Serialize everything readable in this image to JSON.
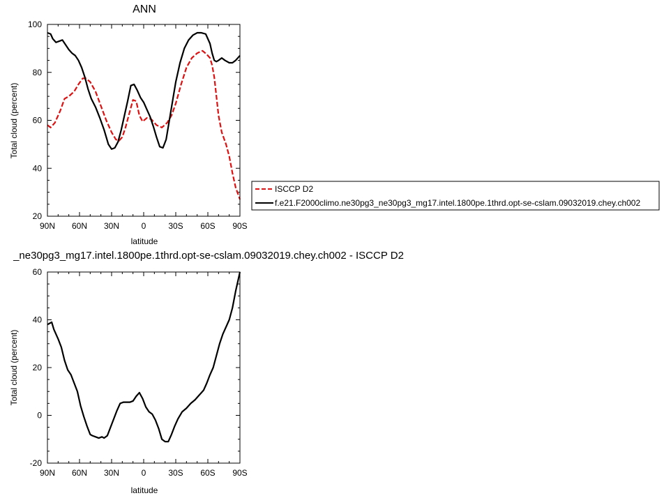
{
  "chart_data": [
    {
      "type": "line",
      "title": "ANN",
      "xlabel": "latitude",
      "ylabel": "Total cloud (percent)",
      "xlim": [
        90,
        -90
      ],
      "ylim": [
        20,
        100
      ],
      "yticks": [
        20,
        40,
        60,
        80,
        100
      ],
      "xticks": [
        {
          "value": 90,
          "label": "90N"
        },
        {
          "value": 60,
          "label": "60N"
        },
        {
          "value": 30,
          "label": "30N"
        },
        {
          "value": 0,
          "label": "0"
        },
        {
          "value": -30,
          "label": "30S"
        },
        {
          "value": -60,
          "label": "60S"
        },
        {
          "value": -90,
          "label": "90S"
        }
      ],
      "grid": false,
      "legend_position": "right",
      "series": [
        {
          "name": "ISCCP D2",
          "color": "#dd1111",
          "dash": "dashed",
          "x": [
            90,
            87,
            83,
            78,
            74,
            70,
            65,
            61,
            57,
            54,
            50,
            45,
            40,
            35,
            30,
            26,
            23,
            20,
            17,
            14,
            10,
            7,
            4,
            1,
            -3,
            -7,
            -12,
            -17,
            -22,
            -26,
            -30,
            -35,
            -40,
            -45,
            -50,
            -55,
            -59,
            -62,
            -64,
            -66,
            -68,
            -70,
            -73,
            -77,
            -80,
            -83,
            -86,
            -90
          ],
          "y": [
            58,
            57,
            59,
            64,
            69,
            70,
            72,
            75,
            77.5,
            77.5,
            76,
            72,
            66,
            60,
            55,
            52,
            51.5,
            53,
            57,
            62,
            68.5,
            68,
            62,
            59.5,
            61,
            60.5,
            58,
            57,
            59,
            62,
            67,
            75,
            82,
            86,
            88,
            89,
            87.5,
            86,
            83,
            78,
            70,
            62,
            55,
            50,
            45,
            38,
            32,
            27
          ]
        },
        {
          "name": "f.e21.F2000climo.ne30pg3_ne30pg3_mg17.intel.1800pe.1thrd.opt-se-cslam.09032019.chey.ch002",
          "color": "#000000",
          "dash": "solid",
          "x": [
            90,
            87,
            85,
            82,
            79,
            76,
            73,
            70,
            67,
            64,
            61,
            58,
            55,
            52,
            49,
            45,
            41,
            37,
            33,
            30,
            27,
            24,
            21,
            18,
            15,
            12,
            9,
            6,
            3,
            0,
            -3,
            -6,
            -9,
            -12,
            -15,
            -18,
            -21,
            -24,
            -27,
            -30,
            -34,
            -38,
            -42,
            -46,
            -50,
            -54,
            -58,
            -62,
            -64,
            -66,
            -68,
            -70,
            -73,
            -76,
            -80,
            -83,
            -86,
            -90
          ],
          "y": [
            96.5,
            96,
            94,
            92.5,
            93,
            93.5,
            91.5,
            89.5,
            88,
            87,
            85,
            82,
            78,
            73,
            69,
            65.5,
            61,
            56,
            50,
            48,
            48.5,
            51,
            56,
            62,
            68,
            74.5,
            75,
            72.5,
            69.5,
            67.5,
            64.5,
            61.5,
            57.5,
            53,
            49,
            48.5,
            52,
            60,
            68,
            76,
            84,
            90,
            93.5,
            95.5,
            96.5,
            96.5,
            96,
            92,
            88,
            85,
            84.5,
            85,
            86,
            85,
            84,
            84,
            85,
            87
          ]
        }
      ]
    },
    {
      "type": "line",
      "title": "_ne30pg3_mg17.intel.1800pe.1thrd.opt-se-cslam.09032019.chey.ch002 - ISCCP D2",
      "xlabel": "latitude",
      "ylabel": "Total cloud (percent)",
      "xlim": [
        90,
        -90
      ],
      "ylim": [
        -20,
        60
      ],
      "yticks": [
        -20,
        0,
        20,
        40,
        60
      ],
      "xticks": [
        {
          "value": 90,
          "label": "90N"
        },
        {
          "value": 60,
          "label": "60N"
        },
        {
          "value": 30,
          "label": "30N"
        },
        {
          "value": 0,
          "label": "0"
        },
        {
          "value": -30,
          "label": "30S"
        },
        {
          "value": -60,
          "label": "60S"
        },
        {
          "value": -90,
          "label": "90S"
        }
      ],
      "grid": false,
      "series": [
        {
          "color": "#000000",
          "dash": "solid",
          "x": [
            90,
            88,
            86,
            84,
            80,
            77,
            74,
            71,
            68,
            65,
            62,
            59,
            56,
            53,
            50,
            48,
            45,
            42,
            39,
            37,
            34,
            31,
            28,
            25,
            22,
            19,
            16,
            13,
            10,
            7,
            4,
            1,
            -2,
            -5,
            -8,
            -11,
            -14,
            -17,
            -20,
            -23,
            -26,
            -29,
            -32,
            -36,
            -40,
            -44,
            -48,
            -52,
            -56,
            -59,
            -62,
            -65,
            -68,
            -71,
            -74,
            -77,
            -80,
            -83,
            -86,
            -88,
            -90
          ],
          "y": [
            38,
            38.5,
            39,
            36,
            32,
            28.5,
            23,
            19,
            17,
            13.5,
            10,
            4,
            -0.5,
            -4.5,
            -8,
            -8.5,
            -9,
            -9.5,
            -9,
            -9.5,
            -8.5,
            -5,
            -1.5,
            2,
            5,
            5.5,
            5.5,
            5.5,
            6,
            8,
            9.5,
            7,
            3.5,
            1.5,
            0.5,
            -2,
            -5.5,
            -10,
            -11,
            -11,
            -8,
            -4.5,
            -1.5,
            1.5,
            3,
            5,
            6.5,
            8.5,
            10.5,
            13.5,
            17,
            20,
            25,
            30,
            34,
            37,
            40,
            45,
            52,
            56,
            60
          ]
        }
      ]
    }
  ]
}
